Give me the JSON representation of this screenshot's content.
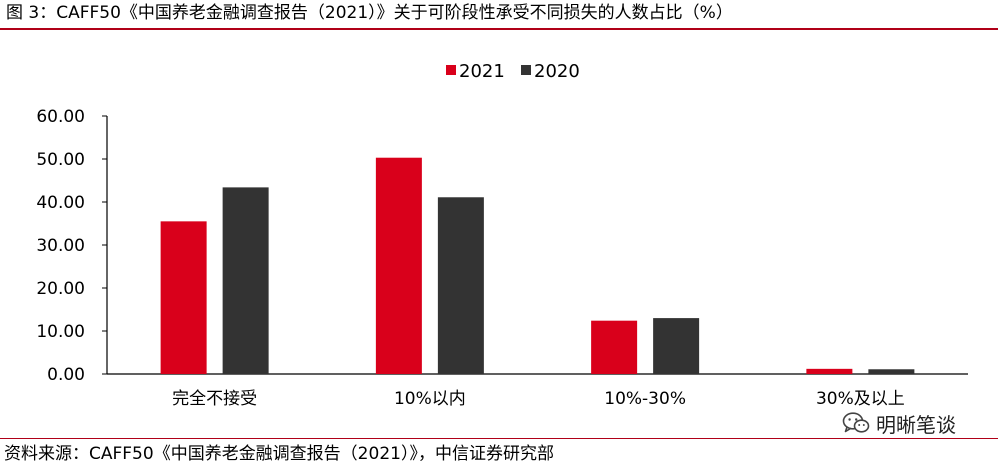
{
  "figure": {
    "title": "图 3：CAFF50《中国养老金融调查报告（2021）》关于可阶段性承受不同损失的人数占比（%）",
    "source": "资料来源：CAFF50《中国养老金融调查报告（2021）》，中信证券研究部",
    "watermark": "明晰笔谈",
    "watermark_icon": "wechat-icon",
    "colors": {
      "rule": "#b00018",
      "series_2021": "#d9001b",
      "series_2020": "#333333"
    }
  },
  "chart_data": {
    "type": "bar",
    "categories": [
      "完全不接受",
      "10%以内",
      "10%-30%",
      "30%及以上"
    ],
    "series": [
      {
        "name": "2021",
        "values": [
          35.5,
          50.3,
          12.4,
          1.2
        ],
        "color": "#d9001b"
      },
      {
        "name": "2020",
        "values": [
          43.4,
          41.1,
          13.0,
          1.1
        ],
        "color": "#333333"
      }
    ],
    "ylim": [
      0,
      60
    ],
    "yticks": [
      "0.00",
      "10.00",
      "20.00",
      "30.00",
      "40.00",
      "50.00",
      "60.00"
    ],
    "legend_position": "top-center",
    "grid": false
  }
}
